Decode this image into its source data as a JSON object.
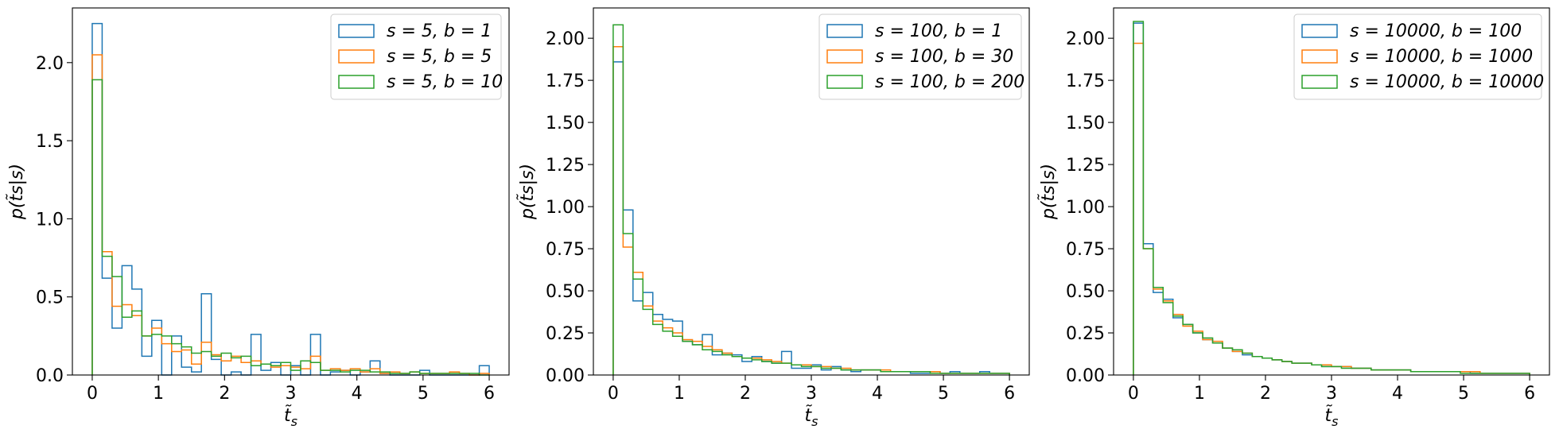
{
  "chart_data": [
    {
      "type": "histogram",
      "xlabel": "t̃",
      "xlabel_sub": "s",
      "ylabel": "p(t̃s|s)",
      "xlim": [
        -0.3,
        6.3
      ],
      "ylim": [
        0,
        2.35
      ],
      "xticks": [
        0,
        1,
        2,
        3,
        4,
        5,
        6
      ],
      "xtick_labels": [
        "0",
        "1",
        "2",
        "3",
        "4",
        "5",
        "6"
      ],
      "yticks": [
        0,
        0.5,
        1,
        1.5,
        2
      ],
      "ytick_labels": [
        "0.0",
        "0.5",
        "1.0",
        "1.5",
        "2.0"
      ],
      "legend_position": "top-right",
      "bin_start": 0,
      "bin_width": 0.15,
      "series": [
        {
          "name": "s = 5, b = 1",
          "color": "#1f77b4",
          "values": [
            2.25,
            0.62,
            0.3,
            0.7,
            0.55,
            0.12,
            0.35,
            0.0,
            0.25,
            0.05,
            0.02,
            0.52,
            0.1,
            0.0,
            0.02,
            0.0,
            0.26,
            0.03,
            0.08,
            0.0,
            0.06,
            0.0,
            0.26,
            0.0,
            0.02,
            0.03,
            0.0,
            0.02,
            0.09,
            0.01,
            0.0,
            0.0,
            0.0,
            0.03,
            0.0,
            0.0,
            0.0,
            0.0,
            0.0,
            0.06
          ]
        },
        {
          "name": "s = 5, b = 5",
          "color": "#ff7f0e",
          "values": [
            2.05,
            0.79,
            0.44,
            0.45,
            0.38,
            0.25,
            0.3,
            0.2,
            0.15,
            0.16,
            0.07,
            0.21,
            0.13,
            0.09,
            0.12,
            0.08,
            0.09,
            0.07,
            0.05,
            0.06,
            0.05,
            0.04,
            0.12,
            0.03,
            0.04,
            0.03,
            0.04,
            0.02,
            0.04,
            0.01,
            0.02,
            0.01,
            0.02,
            0.01,
            0.01,
            0.01,
            0.02,
            0.01,
            0.0,
            0.01
          ]
        },
        {
          "name": "s = 5, b = 10",
          "color": "#2ca02c",
          "values": [
            1.89,
            0.76,
            0.63,
            0.37,
            0.41,
            0.25,
            0.26,
            0.25,
            0.2,
            0.18,
            0.14,
            0.15,
            0.12,
            0.14,
            0.11,
            0.12,
            0.06,
            0.07,
            0.06,
            0.08,
            0.03,
            0.09,
            0.08,
            0.03,
            0.03,
            0.02,
            0.03,
            0.03,
            0.02,
            0.02,
            0.01,
            0.01,
            0.02,
            0.01,
            0.01,
            0.01,
            0.01,
            0.01,
            0.01,
            0.0
          ]
        }
      ]
    },
    {
      "type": "histogram",
      "xlabel": "t̃",
      "xlabel_sub": "s",
      "ylabel": "p(t̃s|s)",
      "xlim": [
        -0.3,
        6.3
      ],
      "ylim": [
        0,
        2.18
      ],
      "xticks": [
        0,
        1,
        2,
        3,
        4,
        5,
        6
      ],
      "xtick_labels": [
        "0",
        "1",
        "2",
        "3",
        "4",
        "5",
        "6"
      ],
      "yticks": [
        0,
        0.25,
        0.5,
        0.75,
        1,
        1.25,
        1.5,
        1.75,
        2
      ],
      "ytick_labels": [
        "0.00",
        "0.25",
        "0.50",
        "0.75",
        "1.00",
        "1.25",
        "1.50",
        "1.75",
        "2.00"
      ],
      "legend_position": "top-right",
      "bin_start": 0,
      "bin_width": 0.15,
      "series": [
        {
          "name": "s = 100, b = 1",
          "color": "#1f77b4",
          "values": [
            1.86,
            0.98,
            0.44,
            0.49,
            0.36,
            0.33,
            0.32,
            0.2,
            0.18,
            0.24,
            0.12,
            0.13,
            0.12,
            0.08,
            0.11,
            0.08,
            0.07,
            0.14,
            0.04,
            0.04,
            0.06,
            0.03,
            0.05,
            0.03,
            0.02,
            0.03,
            0.03,
            0.02,
            0.02,
            0.02,
            0.01,
            0.01,
            0.02,
            0.01,
            0.02,
            0.01,
            0.01,
            0.02,
            0.01,
            0.01
          ]
        },
        {
          "name": "s = 100, b = 30",
          "color": "#ff7f0e",
          "values": [
            1.95,
            0.76,
            0.61,
            0.41,
            0.32,
            0.28,
            0.25,
            0.21,
            0.2,
            0.17,
            0.15,
            0.13,
            0.11,
            0.1,
            0.1,
            0.09,
            0.08,
            0.07,
            0.06,
            0.06,
            0.05,
            0.05,
            0.04,
            0.04,
            0.03,
            0.03,
            0.03,
            0.03,
            0.02,
            0.02,
            0.02,
            0.02,
            0.02,
            0.01,
            0.01,
            0.01,
            0.01,
            0.01,
            0.01,
            0.01
          ]
        },
        {
          "name": "s = 100, b = 200",
          "color": "#2ca02c",
          "values": [
            2.08,
            0.84,
            0.57,
            0.39,
            0.3,
            0.26,
            0.23,
            0.2,
            0.18,
            0.15,
            0.14,
            0.12,
            0.11,
            0.1,
            0.09,
            0.08,
            0.07,
            0.07,
            0.06,
            0.05,
            0.05,
            0.04,
            0.04,
            0.03,
            0.03,
            0.03,
            0.03,
            0.02,
            0.02,
            0.02,
            0.02,
            0.02,
            0.01,
            0.01,
            0.01,
            0.01,
            0.01,
            0.01,
            0.01,
            0.01
          ]
        }
      ]
    },
    {
      "type": "histogram",
      "xlabel": "t̃",
      "xlabel_sub": "s",
      "ylabel": "p(t̃s|s)",
      "xlim": [
        -0.3,
        6.3
      ],
      "ylim": [
        0,
        2.18
      ],
      "xticks": [
        0,
        1,
        2,
        3,
        4,
        5,
        6
      ],
      "xtick_labels": [
        "0",
        "1",
        "2",
        "3",
        "4",
        "5",
        "6"
      ],
      "yticks": [
        0,
        0.25,
        0.5,
        0.75,
        1,
        1.25,
        1.5,
        1.75,
        2
      ],
      "ytick_labels": [
        "0.00",
        "0.25",
        "0.50",
        "0.75",
        "1.00",
        "1.25",
        "1.50",
        "1.75",
        "2.00"
      ],
      "legend_position": "top-right",
      "bin_start": 0,
      "bin_width": 0.15,
      "series": [
        {
          "name": "s = 10000, b = 100",
          "color": "#1f77b4",
          "values": [
            2.09,
            0.78,
            0.49,
            0.45,
            0.34,
            0.3,
            0.25,
            0.21,
            0.19,
            0.16,
            0.14,
            0.12,
            0.11,
            0.1,
            0.09,
            0.08,
            0.07,
            0.07,
            0.06,
            0.05,
            0.05,
            0.05,
            0.04,
            0.04,
            0.03,
            0.03,
            0.03,
            0.03,
            0.02,
            0.02,
            0.02,
            0.02,
            0.02,
            0.02,
            0.01,
            0.01,
            0.01,
            0.01,
            0.01,
            0.01
          ]
        },
        {
          "name": "s = 10000, b = 1000",
          "color": "#ff7f0e",
          "values": [
            1.97,
            0.75,
            0.51,
            0.44,
            0.36,
            0.29,
            0.26,
            0.21,
            0.2,
            0.16,
            0.14,
            0.13,
            0.11,
            0.1,
            0.09,
            0.08,
            0.07,
            0.07,
            0.06,
            0.06,
            0.05,
            0.05,
            0.04,
            0.04,
            0.03,
            0.03,
            0.03,
            0.03,
            0.02,
            0.02,
            0.02,
            0.02,
            0.02,
            0.02,
            0.02,
            0.01,
            0.01,
            0.01,
            0.01,
            0.01
          ]
        },
        {
          "name": "s = 10000, b = 10000",
          "color": "#2ca02c",
          "values": [
            2.1,
            0.75,
            0.52,
            0.43,
            0.35,
            0.3,
            0.25,
            0.22,
            0.19,
            0.16,
            0.15,
            0.13,
            0.11,
            0.1,
            0.09,
            0.08,
            0.07,
            0.07,
            0.06,
            0.05,
            0.05,
            0.04,
            0.04,
            0.04,
            0.03,
            0.03,
            0.03,
            0.03,
            0.02,
            0.02,
            0.02,
            0.02,
            0.02,
            0.01,
            0.01,
            0.01,
            0.01,
            0.01,
            0.01,
            0.01
          ]
        }
      ]
    }
  ]
}
